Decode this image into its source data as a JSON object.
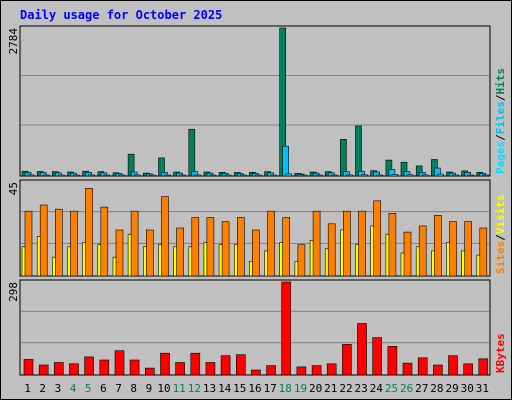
{
  "chart_data": {
    "type": "bar",
    "title": "Daily usage for October 2025",
    "categories": [
      "1",
      "2",
      "3",
      "4",
      "5",
      "6",
      "7",
      "8",
      "9",
      "10",
      "11",
      "12",
      "13",
      "14",
      "15",
      "16",
      "17",
      "18",
      "19",
      "20",
      "21",
      "22",
      "23",
      "24",
      "25",
      "26",
      "27",
      "28",
      "29",
      "30",
      "31"
    ],
    "weekend_days": [
      "4",
      "5",
      "11",
      "12",
      "18",
      "19",
      "25",
      "26"
    ],
    "colors": {
      "background": "#c0c0c0",
      "title": "#0000ff",
      "hits": "#00805c",
      "files": "#00c0ff",
      "pages": "#00e0ff",
      "visits": "#ffff00",
      "sites": "#ff8000",
      "kbytes": "#ff0000",
      "weekend_label": "#00805c",
      "weekday_label": "#000000"
    },
    "panels": [
      {
        "id": "hits-files-pages",
        "max_label": "2784",
        "ymax": 2784,
        "legend": [
          "Pages",
          "/",
          "Files",
          "/",
          "Hits"
        ],
        "legend_colors": [
          "#00e0ff",
          "#000000",
          "#00c0ff",
          "#000000",
          "#00805c"
        ],
        "series": [
          {
            "name": "Hits",
            "values": [
              90,
              85,
              80,
              75,
              90,
              80,
              60,
              410,
              55,
              340,
              75,
              880,
              75,
              70,
              65,
              70,
              80,
              2784,
              50,
              75,
              80,
              690,
              940,
              100,
              300,
              260,
              190,
              310,
              75,
              95,
              70
            ]
          },
          {
            "name": "Files",
            "values": [
              70,
              65,
              60,
              55,
              70,
              60,
              45,
              75,
              40,
              70,
              55,
              80,
              55,
              50,
              45,
              50,
              60,
              560,
              35,
              55,
              60,
              80,
              90,
              75,
              120,
              85,
              70,
              150,
              55,
              70,
              50
            ]
          },
          {
            "name": "Pages",
            "values": [
              20,
              18,
              18,
              15,
              20,
              18,
              12,
              20,
              12,
              18,
              15,
              20,
              15,
              15,
              12,
              15,
              15,
              40,
              10,
              15,
              15,
              20,
              22,
              18,
              30,
              22,
              20,
              35,
              15,
              18,
              12
            ]
          }
        ]
      },
      {
        "id": "visits-sites",
        "max_label": "45",
        "ymax": 45,
        "legend": [
          "Sites",
          "/",
          "Visits"
        ],
        "legend_colors": [
          "#ff8000",
          "#000000",
          "#ffff00"
        ],
        "series": [
          {
            "name": "Visits",
            "values": [
              14,
              19,
              9,
              14,
              16,
              15,
              9,
              20,
              14,
              15,
              14,
              14,
              16,
              15,
              15,
              7,
              12,
              16,
              7,
              17,
              13,
              22,
              15,
              24,
              20,
              11,
              14,
              12,
              16,
              12,
              10
            ]
          },
          {
            "name": "Sites",
            "values": [
              31,
              34,
              32,
              31,
              42,
              33,
              22,
              31,
              22,
              38,
              23,
              28,
              28,
              26,
              28,
              22,
              31,
              28,
              15,
              31,
              25,
              31,
              31,
              36,
              30,
              21,
              24,
              29,
              26,
              26,
              23
            ]
          }
        ]
      },
      {
        "id": "kbytes",
        "max_label": "298",
        "ymax": 298,
        "legend": [
          "KBytes"
        ],
        "legend_colors": [
          "#ff0000"
        ],
        "series": [
          {
            "name": "KBytes",
            "values": [
              50,
              32,
              40,
              36,
              58,
              48,
              78,
              48,
              22,
              70,
              40,
              70,
              40,
              62,
              65,
              16,
              30,
              298,
              26,
              30,
              36,
              98,
              165,
              120,
              92,
              38,
              55,
              32,
              62,
              36,
              52
            ]
          }
        ]
      }
    ]
  }
}
